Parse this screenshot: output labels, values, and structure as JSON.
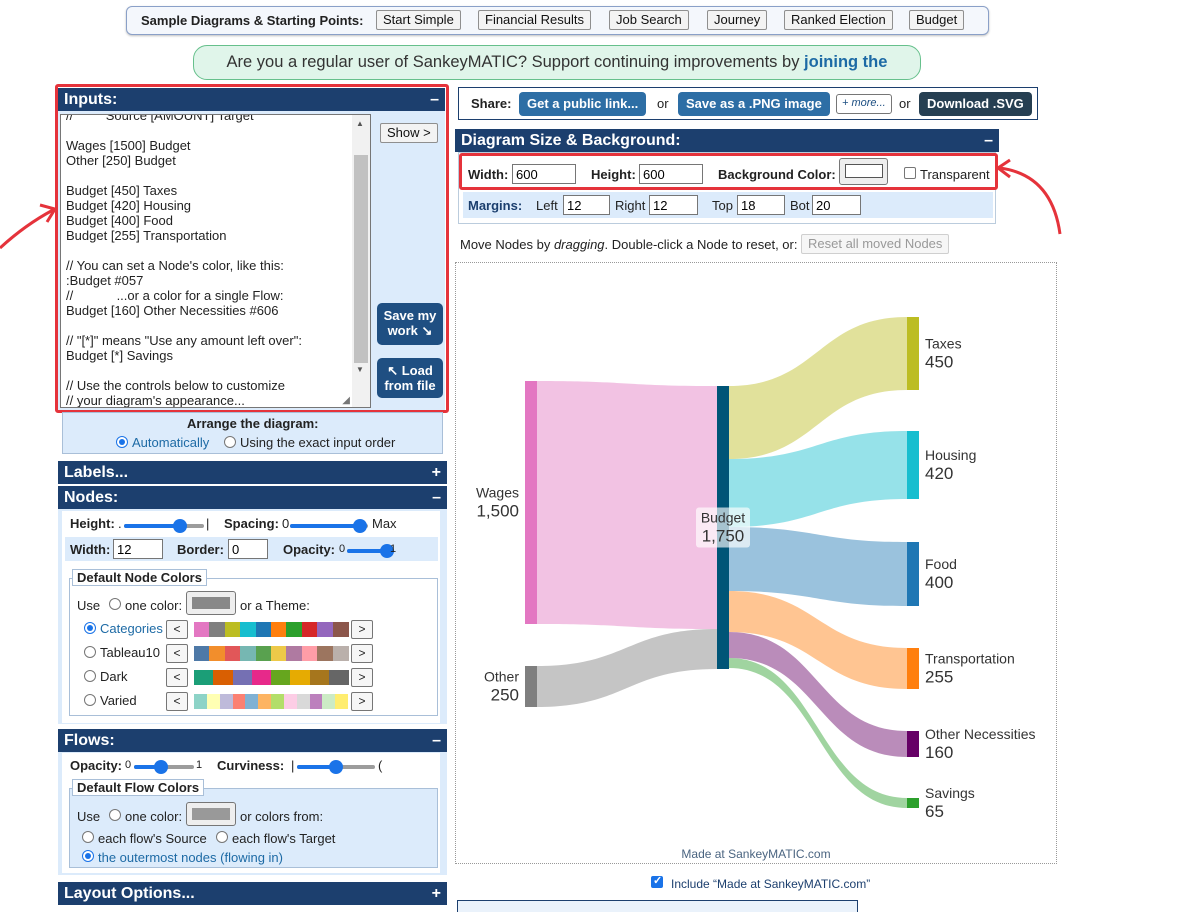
{
  "samples": {
    "label": "Sample Diagrams & Starting Points:",
    "buttons": [
      "Start Simple",
      "Financial Results",
      "Job Search",
      "Journey",
      "Ranked Election",
      "Budget"
    ]
  },
  "patreon": {
    "text": "Are you a regular user of SankeyMATIC? Support continuing improvements by ",
    "link": "joining the Patreon!"
  },
  "inputs": {
    "title": "Inputs:",
    "toggle": "–",
    "lines": [
      "//         Source [AMOUNT] Target",
      "",
      "Wages [1500] Budget",
      "Other [250] Budget",
      "",
      "Budget [450] Taxes",
      "Budget [420] Housing",
      "Budget [400] Food",
      "Budget [255] Transportation",
      "",
      "// You can set a Node's color, like this:",
      ":Budget #057",
      "//            ...or a color for a single Flow:",
      "Budget [160] Other Necessities #606",
      "",
      "// \"[*]\" means \"Use any amount left over\":",
      "Budget [*] Savings",
      "",
      "// Use the controls below to customize",
      "// your diagram's appearance..."
    ],
    "show_button": "Show >",
    "save_button": "Save my work ↘",
    "load_button": "↖ Load from file",
    "arrange_title": "Arrange the diagram:",
    "arrange_auto": "Automatically",
    "arrange_exact": "Using the exact input order"
  },
  "labels_panel": {
    "title": "Labels...",
    "toggle": "+"
  },
  "nodes": {
    "title": "Nodes:",
    "toggle": "–",
    "height_label": "Height:",
    "height_min": ".",
    "height_max": "|",
    "height_level": 0.7,
    "spacing_label": "Spacing:",
    "spacing_min": "0",
    "spacing_max": "Max",
    "spacing_level": 0.9,
    "width_label": "Width:",
    "width_value": "12",
    "border_label": "Border:",
    "border_value": "0",
    "opacity_label": "Opacity:",
    "opacity_min": "0",
    "opacity_max": "1",
    "opacity_level": 1.0,
    "colors_title": "Default Node Colors",
    "use_label": "Use",
    "one_color_label": "one color:",
    "or_theme": "or a Theme:",
    "one_color": "#888888",
    "themes": [
      {
        "name": "Categories",
        "selected": true,
        "colors": [
          "#e377c2",
          "#7f7f7f",
          "#bcbd22",
          "#17becf",
          "#1f77b4",
          "#ff7f0e",
          "#2ca02c",
          "#d62728",
          "#9467bd",
          "#8c564b"
        ]
      },
      {
        "name": "Tableau10",
        "selected": false,
        "colors": [
          "#4e79a7",
          "#f28e2c",
          "#e15759",
          "#76b7b2",
          "#59a14f",
          "#edc949",
          "#af7aa1",
          "#ff9da7",
          "#9c755f",
          "#bab0ab"
        ]
      },
      {
        "name": "Dark",
        "selected": false,
        "colors": [
          "#1b9e77",
          "#d95f02",
          "#7570b3",
          "#e7298a",
          "#66a61e",
          "#e6ab02",
          "#a6761d",
          "#666666"
        ]
      },
      {
        "name": "Varied",
        "selected": false,
        "colors": [
          "#8dd3c7",
          "#ffffb3",
          "#bebada",
          "#fb8072",
          "#80b1d3",
          "#fdb462",
          "#b3de69",
          "#fccde5",
          "#d9d9d9",
          "#bc80bd",
          "#ccebc5",
          "#ffed6f"
        ]
      }
    ]
  },
  "flows": {
    "title": "Flows:",
    "toggle": "–",
    "opacity_label": "Opacity:",
    "opacity_min": "0",
    "opacity_max": "1",
    "opacity_level": 0.45,
    "curviness_label": "Curviness:",
    "curviness_min": "|",
    "curviness_max": "(",
    "curviness_level": 0.5,
    "colors_title": "Default Flow Colors",
    "use_label": "Use",
    "one_color_label": "one color:",
    "colors_from": "or colors from:",
    "one_color": "#999999",
    "source_label": "each flow's Source",
    "target_label": "each flow's Target",
    "outermost_label": "the outermost nodes (flowing in)"
  },
  "layout_panel": {
    "title": "Layout Options...",
    "toggle": "+"
  },
  "share": {
    "label": "Share:",
    "public_link": "Get a public link...",
    "or1": "or",
    "png": "Save as a .PNG image",
    "more": "+ more...",
    "or2": "or",
    "svg": "Download .SVG"
  },
  "size": {
    "title": "Diagram Size & Background:",
    "toggle": "–",
    "width_label": "Width:",
    "width_value": "600",
    "height_label": "Height:",
    "height_value": "600",
    "bg_label": "Background Color:",
    "bg_color": "#ffffff",
    "transparent_label": "Transparent",
    "margins_label": "Margins:",
    "left_label": "Left",
    "left_value": "12",
    "right_label": "Right",
    "right_value": "12",
    "top_label": "Top",
    "top_value": "18",
    "bot_label": "Bot",
    "bot_value": "20"
  },
  "move_nodes": {
    "text_before": "Move Nodes by ",
    "text_em": "dragging",
    "text_after": ". Double-click a Node to reset, or:",
    "reset_button": "Reset all moved Nodes"
  },
  "diagram": {
    "credit": "Made at SankeyMATIC.com",
    "include_label": "Include “Made at SankeyMATIC.com”",
    "nodes": [
      {
        "name": "Wages",
        "value": "1,500",
        "color": "#e377c2"
      },
      {
        "name": "Other",
        "value": "250",
        "color": "#7f7f7f"
      },
      {
        "name": "Budget",
        "value": "1,750",
        "color": "#005577"
      },
      {
        "name": "Taxes",
        "value": "450",
        "color": "#bcbd22"
      },
      {
        "name": "Housing",
        "value": "420",
        "color": "#17becf"
      },
      {
        "name": "Food",
        "value": "400",
        "color": "#1f77b4"
      },
      {
        "name": "Transportation",
        "value": "255",
        "color": "#ff7f0e"
      },
      {
        "name": "Other Necessities",
        "value": "160",
        "color": "#660066"
      },
      {
        "name": "Savings",
        "value": "65",
        "color": "#2ca02c"
      }
    ]
  }
}
